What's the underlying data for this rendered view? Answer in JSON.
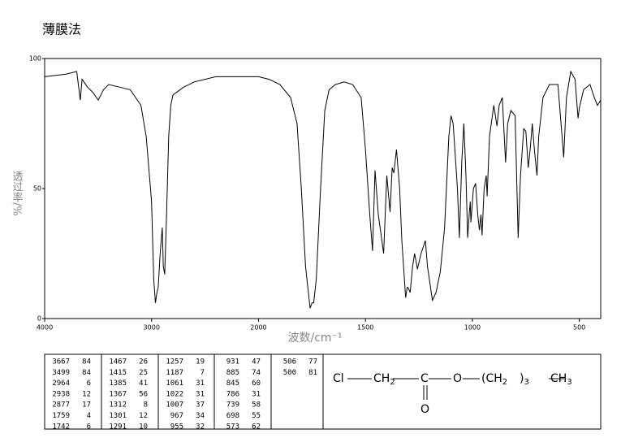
{
  "chart_data": {
    "type": "line",
    "title": "薄膜法",
    "y_label": "透过率/%",
    "x_label": "波数/cm⁻¹",
    "color": "#000000",
    "xlim": [
      4000,
      400
    ],
    "x_break": 2000,
    "ylim": [
      0,
      100
    ],
    "xticks": [
      4000,
      3000,
      2000,
      1500,
      1000,
      500
    ],
    "yticks": [
      0,
      50,
      100
    ],
    "x": [
      4000,
      3800,
      3700,
      3667,
      3650,
      3600,
      3550,
      3499,
      3450,
      3400,
      3300,
      3200,
      3100,
      3050,
      3000,
      2980,
      2964,
      2950,
      2938,
      2920,
      2900,
      2890,
      2877,
      2860,
      2840,
      2820,
      2800,
      2700,
      2600,
      2500,
      2400,
      2300,
      2200,
      2100,
      2000,
      1950,
      1900,
      1850,
      1820,
      1800,
      1780,
      1759,
      1750,
      1742,
      1730,
      1710,
      1690,
      1670,
      1640,
      1600,
      1560,
      1520,
      1500,
      1480,
      1467,
      1455,
      1440,
      1415,
      1400,
      1385,
      1375,
      1367,
      1355,
      1340,
      1330,
      1312,
      1305,
      1301,
      1291,
      1280,
      1270,
      1257,
      1240,
      1220,
      1210,
      1187,
      1170,
      1150,
      1130,
      1110,
      1100,
      1090,
      1070,
      1061,
      1050,
      1040,
      1030,
      1022,
      1015,
      1010,
      1007,
      995,
      985,
      975,
      967,
      960,
      955,
      945,
      935,
      931,
      920,
      900,
      885,
      875,
      860,
      845,
      835,
      820,
      800,
      786,
      775,
      760,
      750,
      739,
      730,
      720,
      710,
      698,
      690,
      670,
      640,
      600,
      573,
      560,
      540,
      520,
      506,
      500,
      480,
      450,
      430,
      415,
      400
    ],
    "values": [
      93,
      94,
      95,
      84,
      92,
      89,
      87,
      84,
      88,
      90,
      89,
      88,
      82,
      70,
      45,
      15,
      6,
      10,
      12,
      25,
      35,
      20,
      17,
      40,
      70,
      82,
      86,
      89,
      91,
      92,
      93,
      93,
      93,
      93,
      93,
      92,
      90,
      85,
      75,
      50,
      20,
      4,
      6,
      6,
      15,
      50,
      80,
      88,
      90,
      91,
      90,
      85,
      65,
      40,
      26,
      57,
      40,
      25,
      55,
      41,
      58,
      56,
      65,
      50,
      30,
      8,
      12,
      12,
      10,
      20,
      25,
      19,
      25,
      30,
      20,
      7,
      10,
      18,
      35,
      70,
      78,
      75,
      50,
      31,
      60,
      75,
      55,
      31,
      40,
      45,
      37,
      50,
      52,
      40,
      34,
      40,
      32,
      50,
      55,
      47,
      70,
      82,
      74,
      82,
      85,
      60,
      75,
      80,
      78,
      31,
      55,
      73,
      72,
      58,
      65,
      75,
      65,
      55,
      70,
      85,
      90,
      90,
      62,
      85,
      95,
      92,
      77,
      81,
      88,
      90,
      85,
      82,
      84
    ]
  },
  "peak_table": {
    "columns": [
      [
        [
          3667,
          84
        ],
        [
          3499,
          84
        ],
        [
          2964,
          6
        ],
        [
          2938,
          12
        ],
        [
          2877,
          17
        ],
        [
          1759,
          4
        ],
        [
          1742,
          6
        ]
      ],
      [
        [
          1467,
          26
        ],
        [
          1415,
          25
        ],
        [
          1385,
          41
        ],
        [
          1367,
          56
        ],
        [
          1312,
          8
        ],
        [
          1301,
          12
        ],
        [
          1291,
          10
        ]
      ],
      [
        [
          1257,
          19
        ],
        [
          1187,
          7
        ],
        [
          1061,
          31
        ],
        [
          1022,
          31
        ],
        [
          1007,
          37
        ],
        [
          967,
          34
        ],
        [
          955,
          32
        ]
      ],
      [
        [
          931,
          47
        ],
        [
          885,
          74
        ],
        [
          845,
          60
        ],
        [
          786,
          31
        ],
        [
          739,
          58
        ],
        [
          698,
          55
        ],
        [
          573,
          62
        ]
      ],
      [
        [
          506,
          77
        ],
        [
          500,
          81
        ]
      ]
    ]
  },
  "structure": {
    "groups": [
      {
        "text": "Cl"
      },
      {
        "text": "CH",
        "sub": "2"
      },
      {
        "text": "C"
      },
      {
        "text": "O"
      },
      {
        "text": "(CH",
        "sub": "2"
      },
      {
        "text": ")",
        "sub": "3"
      },
      {
        "text": "CH",
        "sub": "3"
      }
    ],
    "carbonyl": "O"
  }
}
